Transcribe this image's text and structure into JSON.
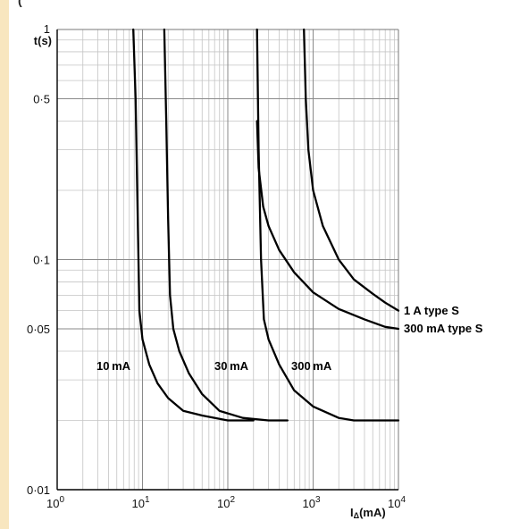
{
  "header_fragment": "(",
  "chart_data": {
    "type": "line",
    "title": "",
    "xlabel": "IΔ(mA)",
    "ylabel": "t(s)",
    "xscale": "log",
    "yscale": "log",
    "xlim": [
      1,
      10000
    ],
    "ylim": [
      0.01,
      1
    ],
    "grid": true,
    "legend": "none",
    "x_tick_labels": [
      {
        "base": "10",
        "exp": "0"
      },
      {
        "base": "10",
        "exp": "1"
      },
      {
        "base": "10",
        "exp": "2"
      },
      {
        "base": "10",
        "exp": "3"
      },
      {
        "base": "10",
        "exp": "4"
      }
    ],
    "y_tick_labels": [
      {
        "value": 1,
        "label": "1"
      },
      {
        "value": 0.5,
        "label": "0·5"
      },
      {
        "value": 0.1,
        "label": "0·1"
      },
      {
        "value": 0.05,
        "label": "0·05"
      },
      {
        "value": 0.01,
        "label": "0·01"
      }
    ],
    "series": [
      {
        "name": "10 mA",
        "x": [
          7.8,
          8.3,
          8.8,
          9.2,
          10,
          12,
          15,
          20,
          30,
          50,
          100,
          150,
          200
        ],
        "y": [
          1,
          0.5,
          0.15,
          0.06,
          0.045,
          0.035,
          0.029,
          0.025,
          0.022,
          0.021,
          0.02,
          0.02,
          0.02
        ]
      },
      {
        "name": "30 mA",
        "x": [
          18,
          19,
          20,
          21,
          23,
          27,
          35,
          50,
          80,
          150,
          300,
          500
        ],
        "y": [
          1,
          0.4,
          0.15,
          0.07,
          0.05,
          0.04,
          0.032,
          0.026,
          0.022,
          0.0205,
          0.02,
          0.02
        ]
      },
      {
        "name": "300 mA",
        "x": [
          220,
          230,
          245,
          265,
          300,
          400,
          600,
          1000,
          2000,
          3000,
          5000,
          10000
        ],
        "y": [
          1,
          0.3,
          0.1,
          0.055,
          0.045,
          0.035,
          0.027,
          0.023,
          0.0205,
          0.02,
          0.02,
          0.02
        ]
      },
      {
        "name": "300 mA type S",
        "x": [
          220,
          230,
          260,
          300,
          400,
          600,
          1000,
          2000,
          4000,
          7000,
          10000
        ],
        "y": [
          0.4,
          0.25,
          0.17,
          0.14,
          0.11,
          0.088,
          0.072,
          0.061,
          0.055,
          0.051,
          0.05
        ]
      },
      {
        "name": "1 A type S",
        "x": [
          780,
          820,
          880,
          1000,
          1300,
          2000,
          3000,
          5000,
          7000,
          10000
        ],
        "y": [
          1,
          0.5,
          0.3,
          0.2,
          0.14,
          0.1,
          0.082,
          0.071,
          0.065,
          0.06
        ]
      }
    ],
    "annotations": [
      {
        "text": "10 mA",
        "series": 0
      },
      {
        "text": "30 mA",
        "series": 1
      },
      {
        "text": "300 mA",
        "series": 2
      },
      {
        "text": "300 mA type S",
        "series": 3
      },
      {
        "text": "1 A type S",
        "series": 4
      }
    ]
  }
}
